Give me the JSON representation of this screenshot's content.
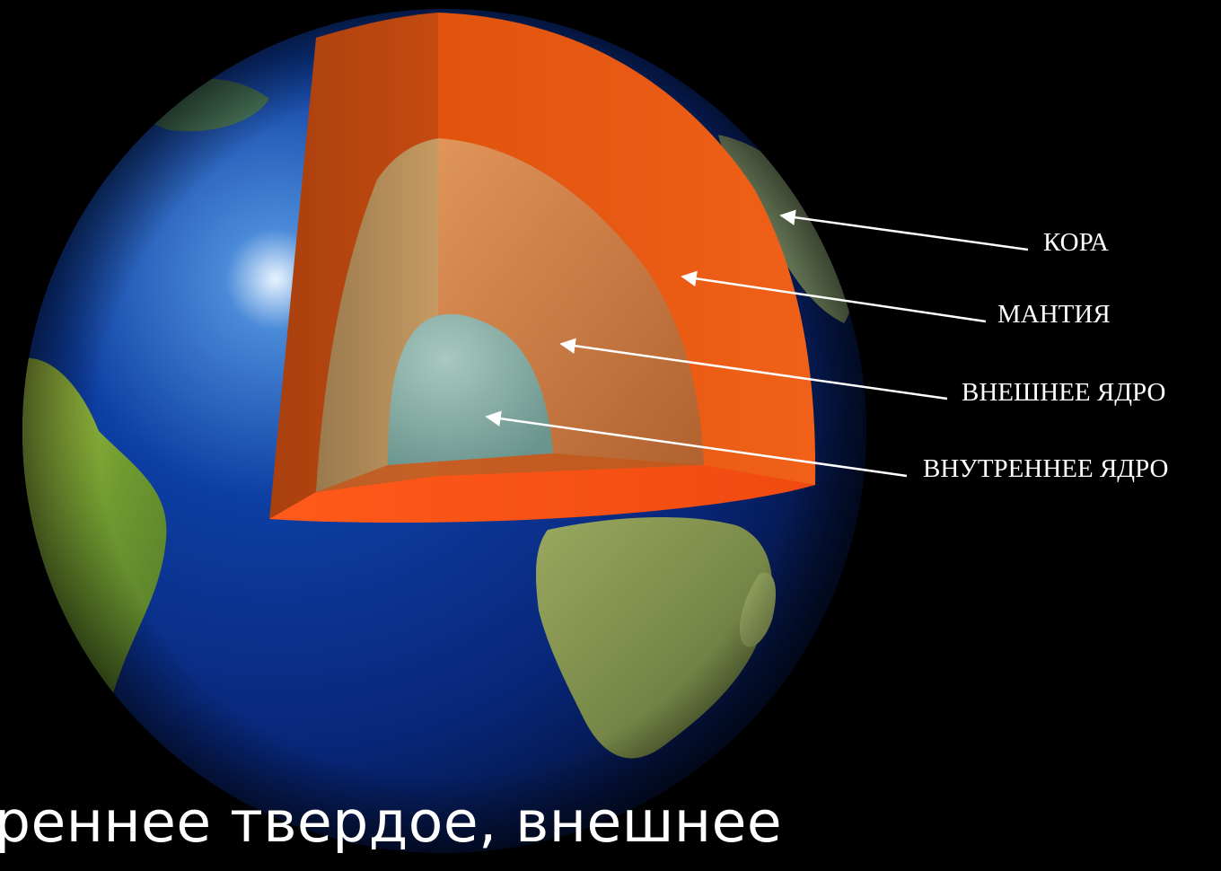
{
  "diagram": {
    "labels": {
      "crust": "КОРА",
      "mantle": "МАНТИЯ",
      "outer_core": "ВНЕШНЕЕ ЯДРО",
      "inner_core": "ВНУТРЕННЕЕ ЯДРО"
    },
    "colors": {
      "background": "#000000",
      "ocean": "#0a2a8a",
      "land": "#7ea43a",
      "crust_cut": "#e0520e",
      "mantle_cut": "#c98a52",
      "inner_core_cut": "#7fa8a0",
      "label_text": "#ffffff"
    }
  },
  "caption": {
    "text": "реннее твердое, внешнее"
  }
}
